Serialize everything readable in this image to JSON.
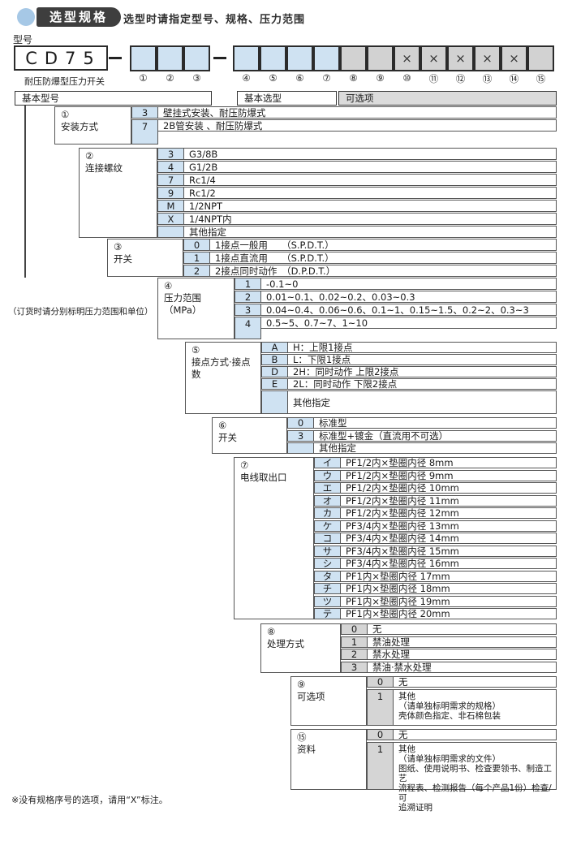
{
  "header": {
    "badge": "选型规格",
    "subtitle": "选型时请指定型号、规格、压力范围",
    "model_label": "型号",
    "model_code": "CD75",
    "model_caption": "耐压防爆型压力开关"
  },
  "bars": {
    "basic_model": "基本型号",
    "basic_selection": "基本选型",
    "optional": "可选项"
  },
  "side_note": "（订货时请分别标明压力范围和单位）",
  "footnote": "※没有规格序号的选项，请用“X”标注。",
  "model_row": {
    "boxes": [
      {
        "num": "①",
        "fill": "blue",
        "mark": ""
      },
      {
        "num": "②",
        "fill": "blue",
        "mark": ""
      },
      {
        "num": "③",
        "fill": "blue",
        "mark": ""
      },
      {
        "num": "④",
        "fill": "blue",
        "mark": ""
      },
      {
        "num": "⑤",
        "fill": "blue",
        "mark": ""
      },
      {
        "num": "⑥",
        "fill": "blue",
        "mark": ""
      },
      {
        "num": "⑦",
        "fill": "blue",
        "mark": ""
      },
      {
        "num": "⑧",
        "fill": "gray",
        "mark": ""
      },
      {
        "num": "⑨",
        "fill": "gray",
        "mark": ""
      },
      {
        "num": "⑩",
        "fill": "gray",
        "mark": "×"
      },
      {
        "num": "⑪",
        "fill": "gray",
        "mark": "×"
      },
      {
        "num": "⑫",
        "fill": "gray",
        "mark": "×"
      },
      {
        "num": "⑬",
        "fill": "gray",
        "mark": "×"
      },
      {
        "num": "⑭",
        "fill": "gray",
        "mark": "×"
      },
      {
        "num": "⑮",
        "fill": "gray",
        "mark": ""
      }
    ]
  },
  "groups": [
    {
      "id": "g1",
      "num": "①",
      "name": "安装方式",
      "rows": [
        {
          "code": "3",
          "desc": "壁挂式安装、耐压防爆式"
        },
        {
          "code": "7",
          "desc": "2B管安装 、耐压防爆式"
        }
      ]
    },
    {
      "id": "g2",
      "num": "②",
      "name": "连接螺纹",
      "rows": [
        {
          "code": "3",
          "desc": "G3/8B"
        },
        {
          "code": "4",
          "desc": "G1/2B"
        },
        {
          "code": "7",
          "desc": "Rc1/4"
        },
        {
          "code": "9",
          "desc": "Rc1/2"
        },
        {
          "code": "M",
          "desc": "1/2NPT"
        },
        {
          "code": "X",
          "desc": "1/4NPT内"
        },
        {
          "code": "",
          "desc": "其他指定"
        }
      ]
    },
    {
      "id": "g3",
      "num": "③",
      "name": "开关",
      "rows": [
        {
          "code": "0",
          "desc": "1接点一般用　　（S.P.D.T.）"
        },
        {
          "code": "1",
          "desc": "1接点直流用　　（S.P.D.T.）"
        },
        {
          "code": "2",
          "desc": "2接点同时动作　（D.P.D.T.）"
        }
      ]
    },
    {
      "id": "g4",
      "num": "④",
      "name": "压力范围（MPa）",
      "rows": [
        {
          "code": "1",
          "desc": "-0.1~0"
        },
        {
          "code": "2",
          "desc": "0.01~0.1、0.02~0.2、0.03~0.3"
        },
        {
          "code": "3",
          "desc": "0.04~0.4、0.06~0.6、0.1~1、0.15~1.5、0.2~2、0.3~3"
        },
        {
          "code": "4",
          "desc": "0.5~5、0.7~7、1~10"
        }
      ]
    },
    {
      "id": "g5",
      "num": "⑤",
      "name": "接点方式·接点数",
      "rows": [
        {
          "code": "A",
          "desc": "H：上限1接点"
        },
        {
          "code": "B",
          "desc": "L：下限1接点"
        },
        {
          "code": "D",
          "desc": "2H：同时动作 上限2接点"
        },
        {
          "code": "E",
          "desc": "2L：同时动作 下限2接点"
        },
        {
          "code": "",
          "desc": "其他指定"
        }
      ]
    },
    {
      "id": "g6",
      "num": "⑥",
      "name": "开关",
      "rows": [
        {
          "code": "0",
          "desc": "标准型"
        },
        {
          "code": "3",
          "desc": "标准型+镀金（直流用不可选）"
        },
        {
          "code": "",
          "desc": "其他指定"
        }
      ]
    },
    {
      "id": "g7",
      "num": "⑦",
      "name": "电线取出口",
      "rows": [
        {
          "code": "イ",
          "desc": "PF1/2内×垫圈内径 8mm"
        },
        {
          "code": "ウ",
          "desc": "PF1/2内×垫圈内径 9mm"
        },
        {
          "code": "エ",
          "desc": "PF1/2内×垫圈内径 10mm"
        },
        {
          "code": "オ",
          "desc": "PF1/2内×垫圈内径 11mm"
        },
        {
          "code": "カ",
          "desc": "PF1/2内×垫圈内径 12mm"
        },
        {
          "code": "ケ",
          "desc": "PF3/4内×垫圈内径 13mm"
        },
        {
          "code": "コ",
          "desc": "PF3/4内×垫圈内径 14mm"
        },
        {
          "code": "サ",
          "desc": "PF3/4内×垫圈内径 15mm"
        },
        {
          "code": "シ",
          "desc": "PF3/4内×垫圈内径 16mm"
        },
        {
          "code": "タ",
          "desc": "PF1内×垫圈内径 17mm"
        },
        {
          "code": "チ",
          "desc": "PF1内×垫圈内径 18mm"
        },
        {
          "code": "ツ",
          "desc": "PF1内×垫圈内径 19mm"
        },
        {
          "code": "テ",
          "desc": "PF1内×垫圈内径 20mm"
        }
      ]
    },
    {
      "id": "g8",
      "num": "⑧",
      "name": "处理方式",
      "rows": [
        {
          "code": "0",
          "desc": "无"
        },
        {
          "code": "1",
          "desc": "禁油处理"
        },
        {
          "code": "2",
          "desc": "禁水处理"
        },
        {
          "code": "3",
          "desc": "禁油·禁水处理"
        }
      ]
    },
    {
      "id": "g9",
      "num": "⑨",
      "name": "可选项",
      "rows": [
        {
          "code": "0",
          "desc": "无"
        },
        {
          "code": "1",
          "desc": "其他\n（请单独标明需求的规格）\n壳体颜色指定、非石棉包装"
        }
      ]
    },
    {
      "id": "g15",
      "num": "⑮",
      "name": "资料",
      "rows": [
        {
          "code": "0",
          "desc": "无"
        },
        {
          "code": "1",
          "desc": "其他\n（请单独标明需求的文件）\n图纸、使用说明书、检查要领书、制造工艺\n流程表、检测报告（每个产品1份）检查/可\n追溯证明"
        }
      ]
    }
  ],
  "colors": {
    "blue_cell": "#cfe2f2",
    "gray_cell": "#d5d5d5",
    "badge_bg": "#3e3e3e",
    "badge_circle": "#a6c8e6",
    "border": "#555555"
  }
}
